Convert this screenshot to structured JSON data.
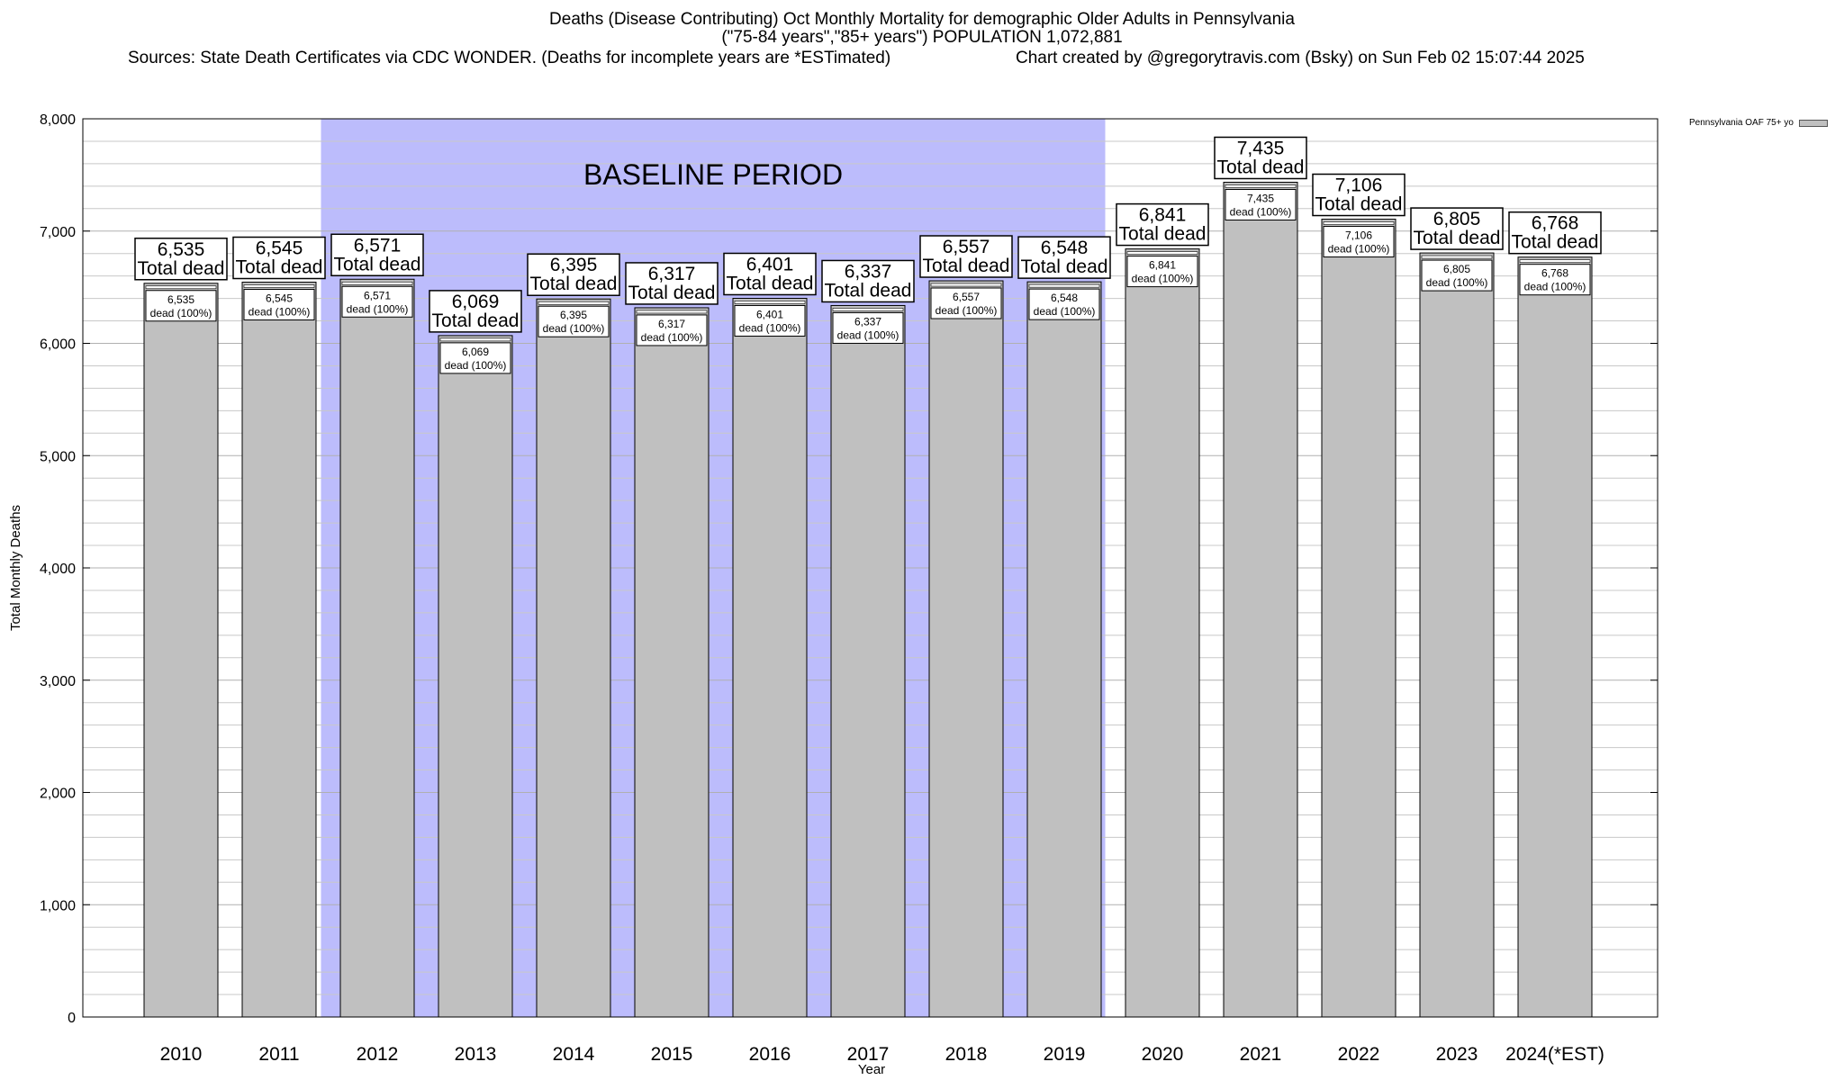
{
  "title": {
    "line1": "Deaths (Disease Contributing) Oct Monthly Mortality for demographic Older Adults in Pennsylvania",
    "line2": "(\"75-84 years\",\"85+ years\") POPULATION 1,072,881",
    "sources": "Sources: State Death Certificates via CDC WONDER. (Deaths for incomplete years are *ESTimated)",
    "credit": "Chart created by @gregorytravis.com (Bsky) on Sun Feb 02 15:07:44 2025"
  },
  "colors": {
    "bar": "#c0c0c0",
    "baseline": "#bcbcfc",
    "grid": "#c8c8c8"
  },
  "chart_data": {
    "type": "bar",
    "xlabel": "Year",
    "ylabel": "Total Monthly Deaths",
    "ylim": [
      0,
      8000
    ],
    "yticks": [
      0,
      1000,
      2000,
      3000,
      4000,
      5000,
      6000,
      7000,
      8000
    ],
    "ytick_labels": [
      "0",
      "1,000",
      "2,000",
      "3,000",
      "4,000",
      "5,000",
      "6,000",
      "7,000",
      "8,000"
    ],
    "grid": true,
    "legend": {
      "label": "Pennsylvania OAF 75+ yo",
      "position": "top-right outside"
    },
    "baseline": {
      "label": "BASELINE PERIOD",
      "start": "2012",
      "end": "2019"
    },
    "categories": [
      "2010",
      "2011",
      "2012",
      "2013",
      "2014",
      "2015",
      "2016",
      "2017",
      "2018",
      "2019",
      "2020",
      "2021",
      "2022",
      "2023",
      "2024(*EST)"
    ],
    "series": [
      {
        "name": "Pennsylvania OAF 75+ yo",
        "values": [
          6535,
          6545,
          6571,
          6069,
          6395,
          6317,
          6401,
          6337,
          6557,
          6548,
          6841,
          7435,
          7106,
          6805,
          6768
        ]
      }
    ],
    "total_label_text": "Total dead",
    "inner_label_text": "dead (100%)"
  }
}
